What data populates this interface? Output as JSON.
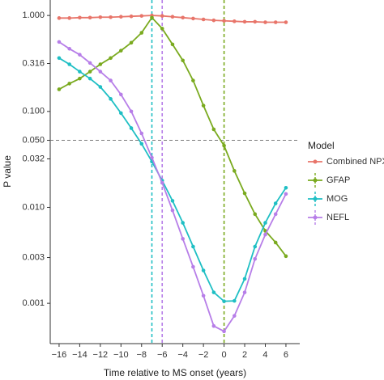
{
  "chart_data": {
    "type": "line",
    "x_label": "Time relative to MS onset (years)",
    "y_label": "P value",
    "log_y": true,
    "legend_title": "Model",
    "x": [
      -16,
      -15,
      -14,
      -13,
      -12,
      -11,
      -10,
      -9,
      -8,
      -7,
      -6,
      -5,
      -4,
      -3,
      -2,
      -1,
      0,
      1,
      2,
      3,
      4,
      5,
      6
    ],
    "series": [
      {
        "name": "Combined NPX",
        "color": "#e8756a",
        "values": [
          0.94,
          0.94,
          0.95,
          0.95,
          0.96,
          0.96,
          0.97,
          0.98,
          0.99,
          1.0,
          0.99,
          0.97,
          0.95,
          0.93,
          0.91,
          0.89,
          0.88,
          0.87,
          0.86,
          0.86,
          0.85,
          0.85,
          0.85
        ]
      },
      {
        "name": "GFAP",
        "color": "#7aaa1f",
        "values": [
          0.17,
          0.195,
          0.22,
          0.26,
          0.31,
          0.36,
          0.43,
          0.52,
          0.66,
          0.95,
          0.73,
          0.5,
          0.34,
          0.21,
          0.115,
          0.065,
          0.044,
          0.024,
          0.014,
          0.0085,
          0.0057,
          0.0043,
          0.0031
        ]
      },
      {
        "name": "MOG",
        "color": "#1fbfc4",
        "values": [
          0.36,
          0.31,
          0.26,
          0.22,
          0.18,
          0.135,
          0.096,
          0.067,
          0.046,
          0.03,
          0.019,
          0.0117,
          0.0069,
          0.0039,
          0.0022,
          0.0013,
          0.00105,
          0.00106,
          0.0018,
          0.0039,
          0.0069,
          0.011,
          0.016
        ]
      },
      {
        "name": "NEFL",
        "color": "#b77ee8",
        "values": [
          0.53,
          0.45,
          0.39,
          0.32,
          0.26,
          0.21,
          0.15,
          0.1,
          0.059,
          0.033,
          0.018,
          0.0093,
          0.0047,
          0.0024,
          0.0012,
          0.00058,
          0.00051,
          0.00074,
          0.0013,
          0.0029,
          0.0052,
          0.0085,
          0.0138
        ]
      }
    ],
    "reference_lines": {
      "x": [
        {
          "value": -7,
          "color": "#1fbfc4"
        },
        {
          "value": -6,
          "color": "#b77ee8"
        },
        {
          "value": 0,
          "color": "#7aaa1f"
        }
      ],
      "y": [
        {
          "value": 0.05,
          "color": "#777777"
        }
      ]
    },
    "xlim": [
      -16.86,
      7.34
    ],
    "ylim": [
      0.00038,
      1.45
    ],
    "xticks": [
      {
        "value": -16,
        "label": "−16"
      },
      {
        "value": -14,
        "label": "−14"
      },
      {
        "value": -12,
        "label": "−12"
      },
      {
        "value": -10,
        "label": "−10"
      },
      {
        "value": -8,
        "label": "−8"
      },
      {
        "value": -6,
        "label": "−6"
      },
      {
        "value": -4,
        "label": "−4"
      },
      {
        "value": -2,
        "label": "−2"
      },
      0,
      2,
      4,
      6
    ],
    "yticks": [
      {
        "value": 1,
        "label": "1.000"
      },
      {
        "value": 0.316,
        "label": "0.316"
      },
      {
        "value": 0.1,
        "label": "0.100"
      },
      {
        "value": 0.05,
        "label": "0.050"
      },
      {
        "value": 0.032,
        "label": "0.032"
      },
      {
        "value": 0.01,
        "label": "0.010"
      },
      {
        "value": 0.003,
        "label": "0.003"
      },
      {
        "value": 0.001,
        "label": "0.001"
      }
    ]
  }
}
